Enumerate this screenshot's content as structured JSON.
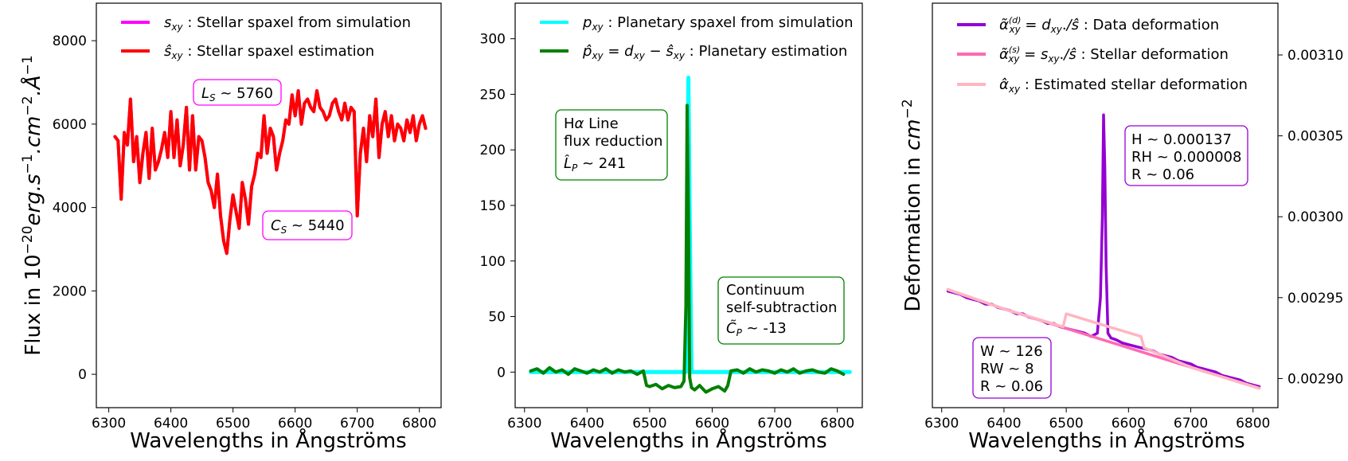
{
  "chart_data": [
    {
      "type": "line",
      "xlabel": "Wavelengths in Ångströms",
      "ylabel": "Flux in 10⁻²⁰erg.s⁻¹.cm⁻².Å⁻¹",
      "xlim": [
        6280,
        6835
      ],
      "ylim": [
        -800,
        8900
      ],
      "xticks": [
        6300,
        6400,
        6500,
        6600,
        6700,
        6800
      ],
      "yticks": [
        0,
        2000,
        4000,
        6000,
        8000
      ],
      "legend_position": "top-left",
      "series": [
        {
          "name": "s_xy : Stellar spaxel from simulation",
          "color": "#ff00ff",
          "x": [
            6310,
            6315,
            6320,
            6325,
            6330,
            6335,
            6340,
            6345,
            6350,
            6355,
            6360,
            6365,
            6370,
            6375,
            6380,
            6385,
            6390,
            6395,
            6400,
            6405,
            6410,
            6415,
            6420,
            6425,
            6430,
            6435,
            6440,
            6445,
            6450,
            6455,
            6460,
            6465,
            6470,
            6475,
            6480,
            6485,
            6490,
            6495,
            6500,
            6505,
            6510,
            6515,
            6520,
            6525,
            6530,
            6535,
            6540,
            6545,
            6550,
            6555,
            6560,
            6565,
            6570,
            6575,
            6580,
            6585,
            6590,
            6595,
            6600,
            6605,
            6610,
            6615,
            6620,
            6625,
            6630,
            6635,
            6640,
            6645,
            6650,
            6655,
            6660,
            6665,
            6670,
            6675,
            6680,
            6685,
            6690,
            6695,
            6700,
            6705,
            6710,
            6715,
            6720,
            6725,
            6730,
            6735,
            6740,
            6745,
            6750,
            6755,
            6760,
            6765,
            6770,
            6775,
            6780,
            6785,
            6790,
            6795,
            6800,
            6805,
            6810
          ],
          "values": [
            5700,
            5600,
            4200,
            5800,
            5500,
            6600,
            5100,
            5700,
            4600,
            5300,
            5800,
            4700,
            5900,
            4900,
            5100,
            5400,
            5800,
            5200,
            6300,
            5200,
            6100,
            5000,
            5500,
            6400,
            4900,
            6200,
            4900,
            5700,
            5600,
            5200,
            4600,
            4400,
            4000,
            4800,
            3800,
            3200,
            2900,
            3700,
            4300,
            3900,
            3500,
            4600,
            4200,
            3600,
            4500,
            4800,
            5300,
            5200,
            6200,
            5300,
            5900,
            5700,
            4900,
            5300,
            5600,
            6100,
            6000,
            6700,
            6200,
            6800,
            6000,
            6500,
            6600,
            6400,
            6300,
            6800,
            6400,
            6300,
            6100,
            6200,
            6500,
            6600,
            6300,
            6100,
            6500,
            6100,
            6400,
            6300,
            3800,
            5300,
            5900,
            5100,
            6200,
            5700,
            6600,
            5200,
            6000,
            6300,
            5700,
            6200,
            5600,
            6000,
            5900,
            5600,
            6100,
            5800,
            6200,
            5600,
            6000,
            6200,
            5900
          ]
        },
        {
          "name": "ŝ_xy : Stellar spaxel estimation",
          "color": "#ff0000",
          "x": [
            6310,
            6315,
            6320,
            6325,
            6330,
            6335,
            6340,
            6345,
            6350,
            6355,
            6360,
            6365,
            6370,
            6375,
            6380,
            6385,
            6390,
            6395,
            6400,
            6405,
            6410,
            6415,
            6420,
            6425,
            6430,
            6435,
            6440,
            6445,
            6450,
            6455,
            6460,
            6465,
            6470,
            6475,
            6480,
            6485,
            6490,
            6495,
            6500,
            6505,
            6510,
            6515,
            6520,
            6525,
            6530,
            6535,
            6540,
            6545,
            6550,
            6555,
            6560,
            6565,
            6570,
            6575,
            6580,
            6585,
            6590,
            6595,
            6600,
            6605,
            6610,
            6615,
            6620,
            6625,
            6630,
            6635,
            6640,
            6645,
            6650,
            6655,
            6660,
            6665,
            6670,
            6675,
            6680,
            6685,
            6690,
            6695,
            6700,
            6705,
            6710,
            6715,
            6720,
            6725,
            6730,
            6735,
            6740,
            6745,
            6750,
            6755,
            6760,
            6765,
            6770,
            6775,
            6780,
            6785,
            6790,
            6795,
            6800,
            6805,
            6810
          ],
          "values": [
            5700,
            5600,
            4200,
            5800,
            5500,
            6600,
            5100,
            5700,
            4600,
            5300,
            5800,
            4700,
            5900,
            4900,
            5100,
            5400,
            5800,
            5200,
            6300,
            5200,
            6100,
            5000,
            5500,
            6400,
            4900,
            6200,
            4900,
            5700,
            5600,
            5200,
            4600,
            4400,
            4000,
            4800,
            3800,
            3200,
            2900,
            3700,
            4300,
            3900,
            3500,
            4600,
            4200,
            3600,
            4500,
            4800,
            5300,
            5200,
            6200,
            5300,
            5900,
            5700,
            4900,
            5300,
            5600,
            6100,
            6000,
            6700,
            6200,
            6800,
            6000,
            6500,
            6600,
            6400,
            6300,
            6800,
            6400,
            6300,
            6100,
            6200,
            6500,
            6600,
            6300,
            6100,
            6500,
            6100,
            6400,
            6300,
            3800,
            5300,
            5900,
            5100,
            6200,
            5700,
            6600,
            5200,
            6000,
            6300,
            5700,
            6200,
            5600,
            6000,
            5900,
            5600,
            6100,
            5800,
            6200,
            5600,
            6000,
            6200,
            5900
          ]
        }
      ],
      "annotations": [
        {
          "text": "L_S ~ 5760",
          "x": 6505,
          "y": 6950,
          "edge_color": "#ff00ff"
        },
        {
          "text": "C_S ~ 5440",
          "x": 6610,
          "y": 3500,
          "edge_color": "#ff00ff"
        }
      ]
    },
    {
      "type": "line",
      "xlabel": "Wavelengths in Ångströms",
      "ylabel": "",
      "xlim": [
        6285,
        6840
      ],
      "ylim": [
        -32,
        332
      ],
      "xticks": [
        6300,
        6400,
        6500,
        6600,
        6700,
        6800
      ],
      "yticks": [
        0,
        50,
        100,
        150,
        200,
        250,
        300
      ],
      "legend_position": "top-left",
      "series": [
        {
          "name": "p_xy : Planetary spaxel from simulation",
          "color": "#00ffff",
          "x": [
            6310,
            6540,
            6550,
            6555,
            6558,
            6560,
            6562,
            6564,
            6567,
            6575,
            6820
          ],
          "values": [
            0,
            0,
            0,
            0,
            0,
            140,
            265,
            140,
            0,
            0,
            0
          ]
        },
        {
          "name": "p̂_xy = d_xy − ŝ_xy : Planetary estimation",
          "color": "#008000",
          "x": [
            6310,
            6320,
            6330,
            6340,
            6350,
            6360,
            6370,
            6380,
            6390,
            6400,
            6410,
            6420,
            6430,
            6440,
            6450,
            6460,
            6470,
            6480,
            6490,
            6495,
            6500,
            6510,
            6520,
            6530,
            6540,
            6550,
            6555,
            6558,
            6560,
            6562,
            6564,
            6567,
            6572,
            6580,
            6590,
            6600,
            6610,
            6620,
            6625,
            6630,
            6640,
            6650,
            6660,
            6670,
            6680,
            6690,
            6700,
            6710,
            6720,
            6730,
            6740,
            6750,
            6760,
            6770,
            6780,
            6790,
            6800,
            6810
          ],
          "values": [
            1,
            3,
            -1,
            4,
            0,
            2,
            -2,
            3,
            1,
            -1,
            2,
            0,
            3,
            -1,
            2,
            0,
            1,
            -2,
            1,
            -12,
            -13,
            -11,
            -15,
            -12,
            -14,
            -13,
            -8,
            60,
            240,
            140,
            -5,
            -14,
            -16,
            -12,
            -18,
            -15,
            -13,
            -17,
            -12,
            1,
            2,
            -1,
            3,
            0,
            2,
            1,
            -1,
            2,
            0,
            3,
            -1,
            1,
            2,
            0,
            -1,
            3,
            1,
            -2
          ]
        }
      ],
      "annotations": [
        {
          "text": "Hα Line\nflux reduction\nL̂_P ~ 241",
          "x": 6380,
          "y": 210,
          "edge_color": "#008000"
        },
        {
          "text": "Continuum\nself-subtraction\nC̃_P ~ -13",
          "x": 6720,
          "y": 55,
          "edge_color": "#008000"
        }
      ]
    },
    {
      "type": "line",
      "xlabel": "Wavelengths in Ångströms",
      "ylabel": "Deformation in cm⁻²",
      "xlim": [
        6285,
        6840
      ],
      "y_right_lim": [
        0.002882,
        0.003132
      ],
      "xticks": [
        6300,
        6400,
        6500,
        6600,
        6700,
        6800
      ],
      "y_right_ticks": [
        "0.00290",
        "0.00295",
        "0.00300",
        "0.00305",
        "0.00310"
      ],
      "y_right_tick_values": [
        0.0029,
        0.00295,
        0.003,
        0.00305,
        0.0031
      ],
      "legend_position": "top-left",
      "series": [
        {
          "name": "α̃(d)_xy = d_xy./ŝ : Data deformation",
          "color": "#9400d3",
          "x": [
            6310,
            6320,
            6330,
            6340,
            6350,
            6360,
            6370,
            6380,
            6390,
            6400,
            6410,
            6420,
            6430,
            6440,
            6450,
            6460,
            6470,
            6480,
            6490,
            6500,
            6510,
            6520,
            6530,
            6540,
            6550,
            6555,
            6558,
            6560,
            6562,
            6564,
            6567,
            6572,
            6580,
            6590,
            6600,
            6610,
            6620,
            6630,
            6640,
            6650,
            6660,
            6670,
            6680,
            6690,
            6700,
            6710,
            6720,
            6730,
            6740,
            6750,
            6760,
            6770,
            6780,
            6790,
            6800,
            6810
          ],
          "values": [
            0.002954,
            0.002953,
            0.002952,
            0.00295,
            0.002949,
            0.002948,
            0.002946,
            0.002946,
            0.002944,
            0.002943,
            0.002942,
            0.00294,
            0.00294,
            0.002938,
            0.002937,
            0.002936,
            0.002934,
            0.002934,
            0.002932,
            0.002931,
            0.00293,
            0.002929,
            0.002928,
            0.002926,
            0.002928,
            0.00295,
            0.003,
            0.003063,
            0.00303,
            0.00297,
            0.002928,
            0.002925,
            0.002924,
            0.002922,
            0.002921,
            0.00292,
            0.002919,
            0.002918,
            0.002917,
            0.002915,
            0.002914,
            0.002913,
            0.002911,
            0.00291,
            0.002909,
            0.002907,
            0.002906,
            0.002905,
            0.002904,
            0.002902,
            0.002901,
            0.0029,
            0.002899,
            0.002897,
            0.002896,
            0.002895
          ]
        },
        {
          "name": "α̃(s)_xy = s_xy./ŝ : Stellar deformation",
          "color": "#ff69b4",
          "x": [
            6310,
            6400,
            6500,
            6600,
            6700,
            6810
          ],
          "values": [
            0.002955,
            0.002943,
            0.002931,
            0.002919,
            0.002907,
            0.002894
          ]
        },
        {
          "name": "α̂_xy : Estimated stellar deformation",
          "color": "#ffb6c1",
          "x": [
            6310,
            6400,
            6495,
            6500,
            6560,
            6620,
            6625,
            6700,
            6810
          ],
          "values": [
            0.002955,
            0.002943,
            0.002932,
            0.00294,
            0.002933,
            0.002926,
            0.002919,
            0.002907,
            0.002894
          ]
        }
      ],
      "annotations": [
        {
          "text": "H ~ 0.000137\nRH ~ 0.000008\nR ~ 0.06",
          "x": 6720,
          "y": 0.00304,
          "edge_color": "#9400d3"
        },
        {
          "text": "W ~ 126\nRW ~ 8\nR ~ 0.06",
          "x": 6355,
          "y": 0.00291,
          "edge_color": "#9400d3"
        }
      ]
    }
  ]
}
